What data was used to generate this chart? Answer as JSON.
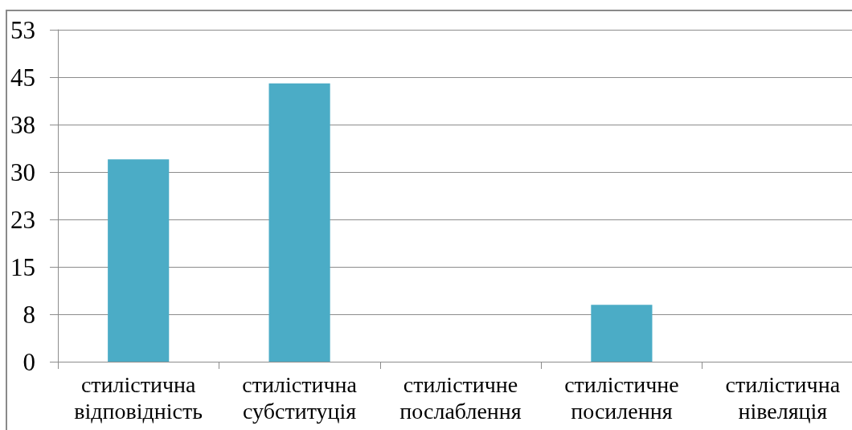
{
  "chart_data": {
    "type": "bar",
    "categories": [
      "стилістична відповідність",
      "стилістична субституція",
      "стилістичне послаблення",
      "стилістичне посилення",
      "стилістична нівеляція"
    ],
    "values": [
      32,
      44,
      0,
      9,
      0
    ],
    "color": "#4bacc6",
    "ylim": [
      0,
      52.5
    ],
    "yticks": [
      0,
      {
        "value": 7.5,
        "label": "8"
      },
      15,
      {
        "value": 22.5,
        "label": "23"
      },
      30,
      {
        "value": 37.5,
        "label": "38"
      },
      45,
      {
        "value": 52.5,
        "label": "53"
      }
    ],
    "grid": "y"
  }
}
